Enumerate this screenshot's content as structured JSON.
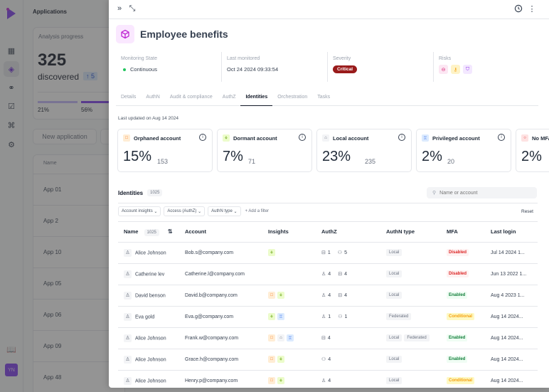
{
  "background_app": {
    "title": "Applications",
    "analysis": {
      "label": "Analysis progress",
      "count": "325",
      "discovered_label": "discovered",
      "delta": "↑ 5",
      "progress": [
        {
          "label": "21%",
          "value": 21
        },
        {
          "label": "56%",
          "value": 56
        }
      ]
    },
    "new_app_button": "New application",
    "table_header": "Name",
    "rows": [
      "App 01",
      "App 2",
      "App 10",
      "App 05",
      "App 06",
      "App 09",
      "App 48"
    ],
    "user_initials": "YN"
  },
  "drawer": {
    "title": "Employee benefits",
    "meta": {
      "monitoring_state_label": "Monitoring State",
      "monitoring_state": "Continuous",
      "last_monitored_label": "Last monitored",
      "last_monitored": "Oct 24 2024 09:33:54",
      "severity_label": "Severity",
      "severity": "Critical",
      "risks_label": "Risks"
    },
    "tabs": [
      "Details",
      "AuthN",
      "Audit & compliance",
      "AuthZ",
      "Identities",
      "Orchestration",
      "Tasks"
    ],
    "active_tab": "Identities",
    "last_updated": "Last updated on Aug 14 2024",
    "cards": [
      {
        "title": "Orphaned account",
        "pct": "15%",
        "count": "153"
      },
      {
        "title": "Dormant account",
        "pct": "7%",
        "count": "71"
      },
      {
        "title": "Local account",
        "pct": "23%",
        "count": "235"
      },
      {
        "title": "Privileged account",
        "pct": "2%",
        "count": "20"
      },
      {
        "title": "No MFA",
        "pct": "2%",
        "count": ""
      }
    ],
    "identities": {
      "title": "Identities",
      "count": "1025",
      "search_placeholder": "Name or account",
      "filters": [
        "Account insights",
        "Access (AuthZ)",
        "AuthN type"
      ],
      "add_filter": "+ Add a filter",
      "reset": "Reset",
      "columns": {
        "name": "Name",
        "name_count": "1025",
        "account": "Account",
        "insights": "Insights",
        "authz": "AuthZ",
        "authn_type": "AuthN type",
        "mfa": "MFA",
        "last_login": "Last login"
      },
      "rows": [
        {
          "name": "Alice Johnson",
          "account": "Bob.s@company.com",
          "insights": [
            "dormant"
          ],
          "authz": [
            [
              "app",
              "1"
            ],
            [
              "group",
              "5"
            ]
          ],
          "authn": [
            "Local"
          ],
          "mfa": "Disabled",
          "mfa_class": "disabled",
          "last_login": "Jul 14 2024 1..."
        },
        {
          "name": "Catherine lev",
          "account": "Catherine.l@company.com",
          "insights": [],
          "authz": [
            [
              "user",
              "4"
            ],
            [
              "app",
              "4"
            ]
          ],
          "authn": [
            "Local"
          ],
          "mfa": "Disabled",
          "mfa_class": "disabled",
          "last_login": "Jun 13 2022 1..."
        },
        {
          "name": "David benson",
          "account": "David.b@company.com",
          "insights": [
            "orphan",
            "dormant"
          ],
          "authz": [
            [
              "user",
              "4"
            ],
            [
              "app",
              "4"
            ]
          ],
          "authn": [
            "Local"
          ],
          "mfa": "Enabled",
          "mfa_class": "enabled",
          "last_login": "Aug 4 2023 1..."
        },
        {
          "name": "Eva gold",
          "account": "Eva.g@company.com",
          "insights": [
            "dormant",
            "priv"
          ],
          "authz": [
            [
              "user",
              "1"
            ],
            [
              "group",
              "1"
            ]
          ],
          "authn": [
            "Federated"
          ],
          "mfa": "Conditional",
          "mfa_class": "conditional",
          "last_login": "Aug 14 2024..."
        },
        {
          "name": "Alice Johnson",
          "account": "Frank.w@company.com",
          "insights": [
            "orphan",
            "local",
            "priv"
          ],
          "authz": [
            [
              "app",
              "4"
            ]
          ],
          "authn": [
            "Local",
            "Federated"
          ],
          "mfa": "Enabled",
          "mfa_class": "enabled",
          "last_login": "Aug 14 2024..."
        },
        {
          "name": "Alice Johnson",
          "account": "Grace.h@company.com",
          "insights": [
            "orphan",
            "dormant"
          ],
          "authz": [
            [
              "group",
              "4"
            ]
          ],
          "authn": [
            "Local"
          ],
          "mfa": "Enabled",
          "mfa_class": "enabled",
          "last_login": "Aug 14 2024..."
        },
        {
          "name": "Alice Johnson",
          "account": "Henry.p@company.com",
          "insights": [
            "orphan",
            "dormant"
          ],
          "authz": [
            [
              "user",
              "4"
            ]
          ],
          "authn": [
            "Local"
          ],
          "mfa": "Conditional",
          "mfa_class": "conditional",
          "last_login": "Aug 14 2024..."
        }
      ]
    }
  }
}
